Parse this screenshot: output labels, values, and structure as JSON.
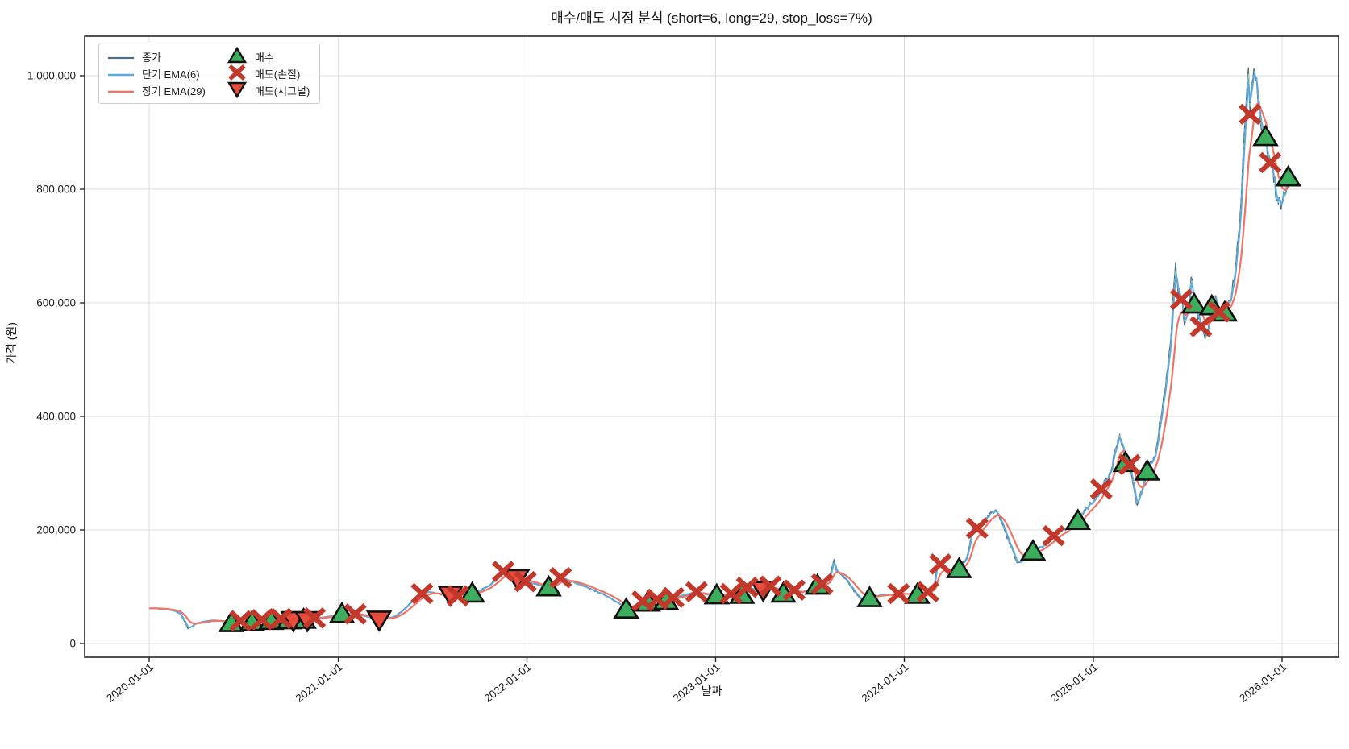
{
  "figure": {
    "title": "매수/매도 시점 분석 (short=6, long=29, stop_loss=7%)",
    "xlabel": "날짜",
    "ylabel": "가격 (원)"
  },
  "legend": {
    "close": "종가",
    "short_ema": "단기 EMA(6)",
    "long_ema": "장기 EMA(29)",
    "buy": "매수",
    "sell_stop": "매도(손절)",
    "sell_signal": "매도(시그널)"
  },
  "colors": {
    "close_line": "#4e6e8e",
    "short_ema_line": "#5fa8dc",
    "long_ema_line": "#ef7465",
    "aux_dashed_line": "#90d0a0",
    "buy_marker_fill": "#3bad5c",
    "sell_stop_marker": "#c2392b",
    "sell_signal_fill": "#e74c3c",
    "marker_edge": "#111111",
    "grid": "#dcdcdc",
    "spine": "#262626",
    "text": "#1a1a1a"
  },
  "axes": {
    "x_tick_labels": [
      "2020-01-01",
      "2021-01-01",
      "2022-01-01",
      "2023-01-01",
      "2024-01-01",
      "2025-01-01",
      "2026-01-01"
    ],
    "y_tick_values": [
      0,
      200000,
      400000,
      600000,
      800000,
      1000000
    ],
    "y_tick_labels": [
      "0",
      "200,000",
      "400,000",
      "600,000",
      "800,000",
      "1,000,000"
    ],
    "x_tick_rotation_deg": -38,
    "grid": true
  },
  "chart_data": {
    "type": "line",
    "title": "매수/매도 시점 분석 (short=6, long=29, stop_loss=7%)",
    "xlabel": "날짜",
    "ylabel": "가격 (원)",
    "ylim": [
      -25000,
      1070000
    ],
    "xlim": [
      "2019-08-29",
      "2026-04-21"
    ],
    "legend_position": "upper left",
    "grid": true,
    "series": [
      {
        "name": "종가",
        "style": "jagged daily close line",
        "points": [
          [
            "2020-01-01",
            62000
          ],
          [
            "2020-01-20",
            61000
          ],
          [
            "2020-02-05",
            60000
          ],
          [
            "2020-02-20",
            57000
          ],
          [
            "2020-03-01",
            52000
          ],
          [
            "2020-03-10",
            38000
          ],
          [
            "2020-03-16",
            26000
          ],
          [
            "2020-03-23",
            30000
          ],
          [
            "2020-04-01",
            36000
          ],
          [
            "2020-04-15",
            39000
          ],
          [
            "2020-05-01",
            41000
          ],
          [
            "2020-05-15",
            40000
          ],
          [
            "2020-06-01",
            37000
          ],
          [
            "2020-06-08",
            36000
          ],
          [
            "2020-06-20",
            40000
          ],
          [
            "2020-07-05",
            37000
          ],
          [
            "2020-07-18",
            38000
          ],
          [
            "2020-08-01",
            42000
          ],
          [
            "2020-08-15",
            40000
          ],
          [
            "2020-08-24",
            40000
          ],
          [
            "2020-09-05",
            44000
          ],
          [
            "2020-09-15",
            43000
          ],
          [
            "2020-09-28",
            41000
          ],
          [
            "2020-10-10",
            41000
          ],
          [
            "2020-10-26",
            42000
          ],
          [
            "2020-11-02",
            41000
          ],
          [
            "2020-11-16",
            45000
          ],
          [
            "2020-12-01",
            46000
          ],
          [
            "2020-12-15",
            48000
          ],
          [
            "2021-01-01",
            50000
          ],
          [
            "2021-01-08",
            52000
          ],
          [
            "2021-01-20",
            53000
          ],
          [
            "2021-02-03",
            52000
          ],
          [
            "2021-02-18",
            49000
          ],
          [
            "2021-03-05",
            45000
          ],
          [
            "2021-03-21",
            42000
          ],
          [
            "2021-04-05",
            44000
          ],
          [
            "2021-04-20",
            48000
          ],
          [
            "2021-05-05",
            58000
          ],
          [
            "2021-05-20",
            72000
          ],
          [
            "2021-06-05",
            85000
          ],
          [
            "2021-06-12",
            88000
          ],
          [
            "2021-06-25",
            91000
          ],
          [
            "2021-07-10",
            88000
          ],
          [
            "2021-07-25",
            85000
          ],
          [
            "2021-08-06",
            86000
          ],
          [
            "2021-08-20",
            84000
          ],
          [
            "2021-09-05",
            87000
          ],
          [
            "2021-09-17",
            88000
          ],
          [
            "2021-10-01",
            93000
          ],
          [
            "2021-10-15",
            100000
          ],
          [
            "2021-11-01",
            112000
          ],
          [
            "2021-11-16",
            127000
          ],
          [
            "2021-11-28",
            121000
          ],
          [
            "2021-12-13",
            115000
          ],
          [
            "2021-12-29",
            109000
          ],
          [
            "2022-01-15",
            105000
          ],
          [
            "2022-02-01",
            101000
          ],
          [
            "2022-02-12",
            99000
          ],
          [
            "2022-02-25",
            104000
          ],
          [
            "2022-03-07",
            116000
          ],
          [
            "2022-03-20",
            112000
          ],
          [
            "2022-04-05",
            106000
          ],
          [
            "2022-04-20",
            101000
          ],
          [
            "2022-05-10",
            93000
          ],
          [
            "2022-05-25",
            88000
          ],
          [
            "2022-06-10",
            80000
          ],
          [
            "2022-06-25",
            72000
          ],
          [
            "2022-07-08",
            63000
          ],
          [
            "2022-07-12",
            60000
          ],
          [
            "2022-07-25",
            66000
          ],
          [
            "2022-08-13",
            75000
          ],
          [
            "2022-08-23",
            72000
          ],
          [
            "2022-09-10",
            78000
          ],
          [
            "2022-09-27",
            75000
          ],
          [
            "2022-10-11",
            81000
          ],
          [
            "2022-10-25",
            84000
          ],
          [
            "2022-11-10",
            88000
          ],
          [
            "2022-11-25",
            91000
          ],
          [
            "2022-12-10",
            87000
          ],
          [
            "2022-12-25",
            84000
          ],
          [
            "2023-01-03",
            85000
          ],
          [
            "2023-01-20",
            87000
          ],
          [
            "2023-01-31",
            88000
          ],
          [
            "2023-02-21",
            86000
          ],
          [
            "2023-03-03",
            99000
          ],
          [
            "2023-03-15",
            96000
          ],
          [
            "2023-04-03",
            94000
          ],
          [
            "2023-04-17",
            101000
          ],
          [
            "2023-05-01",
            95000
          ],
          [
            "2023-05-12",
            88000
          ],
          [
            "2023-05-25",
            91000
          ],
          [
            "2023-06-02",
            94000
          ],
          [
            "2023-06-15",
            90000
          ],
          [
            "2023-07-01",
            95000
          ],
          [
            "2023-07-17",
            102000
          ],
          [
            "2023-07-26",
            105000
          ],
          [
            "2023-08-08",
            112000
          ],
          [
            "2023-08-18",
            148000
          ],
          [
            "2023-08-23",
            126000
          ],
          [
            "2023-09-05",
            118000
          ],
          [
            "2023-09-18",
            102000
          ],
          [
            "2023-10-02",
            85000
          ],
          [
            "2023-10-12",
            77000
          ],
          [
            "2023-10-26",
            80000
          ],
          [
            "2023-11-10",
            84000
          ],
          [
            "2023-11-24",
            87000
          ],
          [
            "2023-12-08",
            85000
          ],
          [
            "2023-12-21",
            88000
          ],
          [
            "2024-01-05",
            87000
          ],
          [
            "2024-01-26",
            86000
          ],
          [
            "2024-02-09",
            89000
          ],
          [
            "2024-02-16",
            91000
          ],
          [
            "2024-02-28",
            102000
          ],
          [
            "2024-03-06",
            150000
          ],
          [
            "2024-03-11",
            140000
          ],
          [
            "2024-03-20",
            133000
          ],
          [
            "2024-04-02",
            128000
          ],
          [
            "2024-04-16",
            131000
          ],
          [
            "2024-05-01",
            152000
          ],
          [
            "2024-05-14",
            210000
          ],
          [
            "2024-05-21",
            203000
          ],
          [
            "2024-06-03",
            218000
          ],
          [
            "2024-06-18",
            232000
          ],
          [
            "2024-06-26",
            236000
          ],
          [
            "2024-07-10",
            208000
          ],
          [
            "2024-07-24",
            172000
          ],
          [
            "2024-08-06",
            142000
          ],
          [
            "2024-08-20",
            150000
          ],
          [
            "2024-09-06",
            162000
          ],
          [
            "2024-09-20",
            170000
          ],
          [
            "2024-10-04",
            180000
          ],
          [
            "2024-10-16",
            190000
          ],
          [
            "2024-10-30",
            198000
          ],
          [
            "2024-11-14",
            207000
          ],
          [
            "2024-12-02",
            216000
          ],
          [
            "2024-12-16",
            236000
          ],
          [
            "2025-01-02",
            252000
          ],
          [
            "2025-01-16",
            272000
          ],
          [
            "2025-02-01",
            300000
          ],
          [
            "2025-02-14",
            345000
          ],
          [
            "2025-02-21",
            370000
          ],
          [
            "2025-03-04",
            318000
          ],
          [
            "2025-03-12",
            315000
          ],
          [
            "2025-03-25",
            246000
          ],
          [
            "2025-04-04",
            268000
          ],
          [
            "2025-04-15",
            303000
          ],
          [
            "2025-05-01",
            332000
          ],
          [
            "2025-05-15",
            420000
          ],
          [
            "2025-05-30",
            530000
          ],
          [
            "2025-06-09",
            672000
          ],
          [
            "2025-06-14",
            615000
          ],
          [
            "2025-06-20",
            606000
          ],
          [
            "2025-06-26",
            560000
          ],
          [
            "2025-07-04",
            592000
          ],
          [
            "2025-07-09",
            645000
          ],
          [
            "2025-07-15",
            597000
          ],
          [
            "2025-07-22",
            570000
          ],
          [
            "2025-07-28",
            558000
          ],
          [
            "2025-08-05",
            536000
          ],
          [
            "2025-08-18",
            594000
          ],
          [
            "2025-08-25",
            612000
          ],
          [
            "2025-09-01",
            584000
          ],
          [
            "2025-09-12",
            583000
          ],
          [
            "2025-09-22",
            602000
          ],
          [
            "2025-10-02",
            655000
          ],
          [
            "2025-10-12",
            760000
          ],
          [
            "2025-10-20",
            900000
          ],
          [
            "2025-10-28",
            1015000
          ],
          [
            "2025-10-31",
            932000
          ],
          [
            "2025-11-04",
            985000
          ],
          [
            "2025-11-09",
            1008000
          ],
          [
            "2025-11-16",
            945000
          ],
          [
            "2025-11-24",
            905000
          ],
          [
            "2025-11-30",
            892000
          ],
          [
            "2025-12-09",
            847000
          ],
          [
            "2025-12-16",
            812000
          ],
          [
            "2025-12-23",
            782000
          ],
          [
            "2025-12-30",
            764000
          ],
          [
            "2026-01-06",
            790000
          ],
          [
            "2026-01-13",
            821000
          ],
          [
            "2026-01-20",
            812000
          ]
        ]
      },
      {
        "name": "단기 EMA(6)",
        "derived": "ema_of_close",
        "span": 6
      },
      {
        "name": "장기 EMA(29)",
        "derived": "ema_of_close",
        "span": 29
      }
    ],
    "markers": {
      "buy": [
        [
          "2020-06-08",
          36000
        ],
        [
          "2020-07-18",
          38000
        ],
        [
          "2020-08-24",
          40000
        ],
        [
          "2020-09-28",
          41000
        ],
        [
          "2020-10-26",
          42000
        ],
        [
          "2021-01-08",
          52000
        ],
        [
          "2021-09-17",
          88000
        ],
        [
          "2022-02-12",
          99000
        ],
        [
          "2022-07-12",
          60000
        ],
        [
          "2022-08-23",
          72000
        ],
        [
          "2022-09-27",
          75000
        ],
        [
          "2023-01-03",
          85000
        ],
        [
          "2023-02-21",
          86000
        ],
        [
          "2023-05-12",
          88000
        ],
        [
          "2023-07-17",
          102000
        ],
        [
          "2023-10-26",
          80000
        ],
        [
          "2024-01-26",
          86000
        ],
        [
          "2024-04-16",
          131000
        ],
        [
          "2024-09-06",
          162000
        ],
        [
          "2024-12-02",
          216000
        ],
        [
          "2025-03-04",
          318000
        ],
        [
          "2025-04-15",
          303000
        ],
        [
          "2025-07-15",
          597000
        ],
        [
          "2025-08-18",
          594000
        ],
        [
          "2025-09-12",
          583000
        ],
        [
          "2025-11-30",
          892000
        ],
        [
          "2026-01-13",
          821000
        ]
      ],
      "sell_stop": [
        [
          "2020-06-26",
          40000
        ],
        [
          "2020-08-06",
          42000
        ],
        [
          "2020-09-12",
          44000
        ],
        [
          "2020-11-16",
          45000
        ],
        [
          "2021-02-03",
          52000
        ],
        [
          "2021-06-12",
          88000
        ],
        [
          "2021-08-20",
          84000
        ],
        [
          "2021-11-16",
          127000
        ],
        [
          "2021-12-29",
          109000
        ],
        [
          "2022-03-07",
          116000
        ],
        [
          "2022-08-13",
          75000
        ],
        [
          "2022-09-10",
          78000
        ],
        [
          "2022-10-11",
          81000
        ],
        [
          "2022-11-25",
          91000
        ],
        [
          "2023-01-31",
          88000
        ],
        [
          "2023-03-03",
          99000
        ],
        [
          "2023-04-17",
          101000
        ],
        [
          "2023-06-02",
          94000
        ],
        [
          "2023-07-26",
          105000
        ],
        [
          "2023-12-21",
          88000
        ],
        [
          "2024-02-16",
          91000
        ],
        [
          "2024-03-11",
          140000
        ],
        [
          "2024-05-21",
          203000
        ],
        [
          "2024-10-16",
          190000
        ],
        [
          "2025-01-16",
          272000
        ],
        [
          "2025-03-12",
          315000
        ],
        [
          "2025-06-20",
          606000
        ],
        [
          "2025-07-28",
          558000
        ],
        [
          "2025-09-01",
          584000
        ],
        [
          "2025-10-31",
          932000
        ],
        [
          "2025-12-09",
          847000
        ]
      ],
      "sell_signal": [
        [
          "2020-10-06",
          41000
        ],
        [
          "2020-11-02",
          41000
        ],
        [
          "2021-03-21",
          42000
        ],
        [
          "2021-08-06",
          86000
        ],
        [
          "2021-12-13",
          115000
        ],
        [
          "2023-04-03",
          94000
        ]
      ]
    }
  }
}
